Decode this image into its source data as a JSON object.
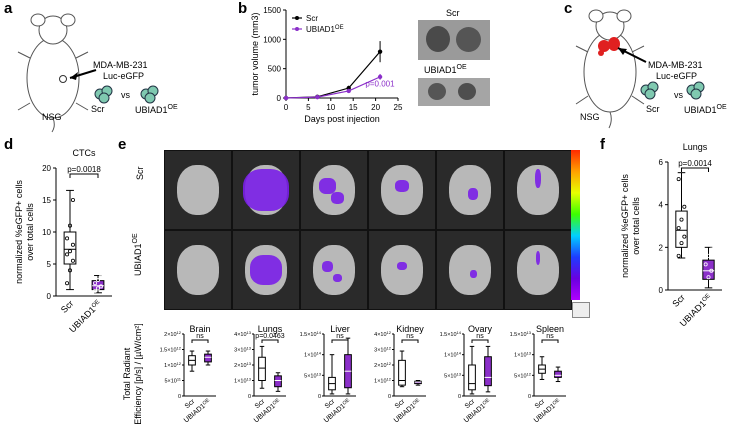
{
  "panels": {
    "a": {
      "letter": "a",
      "strain": "NSG",
      "cell_line": "MDA-MB-231",
      "reporter": "Luc-eGFP",
      "vs": "vs",
      "g1": "Scr",
      "g2": "UBIAD1",
      "sup": "OE"
    },
    "b": {
      "letter": "b",
      "photo_scr": "Scr",
      "photo_oe": "UBIAD1",
      "photo_oe_sup": "OE"
    },
    "c": {
      "letter": "c",
      "strain": "NSG",
      "cell_line": "MDA-MB-231",
      "reporter": "Luc-eGFP",
      "vs": "vs",
      "g1": "Scr",
      "g2": "UBIAD1",
      "sup": "OE"
    },
    "d": {
      "letter": "d"
    },
    "e": {
      "letter": "e",
      "row1": "Scr",
      "row2": "UBIAD1",
      "row2_sup": "OE",
      "colorbar_colors": [
        "#ff2a00",
        "#ffa000",
        "#e8ff00",
        "#3cff00",
        "#00d0ff",
        "#1e3cff",
        "#6a00e0",
        "#b000ff"
      ]
    },
    "f": {
      "letter": "f"
    }
  },
  "chart_data": [
    {
      "id": "tumor-volume",
      "type": "line",
      "ylabel": "tumor volume (mm",
      "ylabel_sup": "3",
      "ylabel_close": ")",
      "xlabel": "Days post injection",
      "x": [
        0,
        7,
        14,
        21
      ],
      "xticks": [
        "0",
        "5",
        "10",
        "15",
        "20",
        "25"
      ],
      "yticks": [
        "0",
        "500",
        "1000",
        "1500"
      ],
      "ylim": [
        0,
        1500
      ],
      "xlim": [
        0,
        25
      ],
      "series": [
        {
          "name": "Scr",
          "color": "#000000",
          "values": [
            0,
            20,
            170,
            790
          ],
          "err": [
            0,
            10,
            40,
            180
          ]
        },
        {
          "name": "UBIAD1",
          "name_sup": "OE",
          "color": "#8b2fc9",
          "values": [
            0,
            15,
            120,
            360
          ],
          "err": [
            0,
            8,
            30,
            50
          ]
        }
      ],
      "annotation": "p=0.001"
    },
    {
      "id": "ctcs",
      "type": "box",
      "title": "CTCs",
      "ylabel": "normalized %eGFP+ cells over total cells",
      "yticks": [
        "0",
        "5",
        "10",
        "15",
        "20"
      ],
      "ylim": [
        0,
        20
      ],
      "categories": [
        "Scr",
        "UBIAD1"
      ],
      "cat_sup": [
        "",
        "OE"
      ],
      "boxes": [
        {
          "min": 1.0,
          "q1": 5.0,
          "median": 7.3,
          "q3": 10.0,
          "max": 16.5,
          "fill": "#ffffff",
          "points": [
            2,
            4,
            5.5,
            6.5,
            7,
            8,
            9,
            11,
            15
          ]
        },
        {
          "min": 0.5,
          "q1": 1.0,
          "median": 1.6,
          "q3": 2.4,
          "max": 3.2,
          "fill": "#8b2fc9",
          "points": [
            0.8,
            1.2,
            1.5,
            2,
            2.5,
            3
          ]
        }
      ],
      "pvalue": "p=0.0018"
    },
    {
      "id": "lungs",
      "type": "box",
      "title": "Lungs",
      "ylabel": "normalized %eGFP+ cells over total cells",
      "yticks": [
        "0",
        "2",
        "4",
        "6"
      ],
      "ylim": [
        0,
        6
      ],
      "categories": [
        "Scr",
        "UBIAD1"
      ],
      "cat_sup": [
        "",
        "OE"
      ],
      "boxes": [
        {
          "min": 1.5,
          "q1": 2.0,
          "median": 2.8,
          "q3": 3.7,
          "max": 5.5,
          "fill": "#ffffff",
          "points": [
            1.6,
            2.2,
            2.5,
            2.9,
            3.3,
            3.9,
            5.2
          ]
        },
        {
          "min": 0.1,
          "q1": 0.5,
          "median": 0.9,
          "q3": 1.4,
          "max": 2.0,
          "fill": "#8b2fc9",
          "points": [
            0.3,
            0.6,
            0.9,
            1.2,
            1.6,
            1.9
          ]
        }
      ],
      "pvalue": "p=0.0014"
    },
    {
      "id": "radiant",
      "type": "box",
      "ylabel": "Total Radiant Efficiency [p/s] / [µW/cm²]",
      "categories": [
        "Scr",
        "UBIAD1"
      ],
      "cat_sup": [
        "",
        "OE"
      ],
      "subplots": [
        {
          "title": "Brain",
          "yticks": [
            "0",
            "5×10",
            "1×10",
            "1.5×10",
            "2×10"
          ],
          "yexp": [
            "",
            "11",
            "12",
            "12",
            "12"
          ],
          "ylim": [
            0,
            2
          ],
          "pvalue": "ns",
          "boxes": [
            {
              "min": 0.8,
              "q1": 1.0,
              "median": 1.15,
              "q3": 1.3,
              "max": 1.45,
              "fill": "#ffffff"
            },
            {
              "min": 1.0,
              "q1": 1.1,
              "median": 1.25,
              "q3": 1.35,
              "max": 1.45,
              "fill": "#8b2fc9"
            }
          ]
        },
        {
          "title": "Lungs",
          "yticks": [
            "0",
            "1×10",
            "2×10",
            "3×10",
            "4×10"
          ],
          "yexp": [
            "",
            "13",
            "13",
            "13",
            "13"
          ],
          "ylim": [
            0,
            4
          ],
          "pvalue": "p=0.0463",
          "boxes": [
            {
              "min": 0.5,
              "q1": 1.0,
              "median": 1.8,
              "q3": 2.5,
              "max": 3.2,
              "fill": "#ffffff"
            },
            {
              "min": 0.3,
              "q1": 0.6,
              "median": 1.0,
              "q3": 1.3,
              "max": 1.5,
              "fill": "#8b2fc9"
            }
          ]
        },
        {
          "title": "Liver",
          "yticks": [
            "0",
            "5×10",
            "1×10",
            "1.5×10"
          ],
          "yexp": [
            "",
            "13",
            "14",
            "14"
          ],
          "ylim": [
            0,
            1.5
          ],
          "pvalue": "ns",
          "boxes": [
            {
              "min": 0.05,
              "q1": 0.15,
              "median": 0.3,
              "q3": 0.45,
              "max": 1.0,
              "fill": "#ffffff"
            },
            {
              "min": 0.05,
              "q1": 0.2,
              "median": 0.6,
              "q3": 1.0,
              "max": 1.4,
              "fill": "#8b2fc9"
            }
          ]
        },
        {
          "title": "Kidney",
          "yticks": [
            "0",
            "1×10",
            "2×10",
            "3×10",
            "4×10"
          ],
          "yexp": [
            "",
            "12",
            "12",
            "12",
            "12"
          ],
          "ylim": [
            0,
            4
          ],
          "pvalue": "ns",
          "boxes": [
            {
              "min": 0.6,
              "q1": 0.7,
              "median": 1.0,
              "q3": 2.3,
              "max": 2.9,
              "fill": "#ffffff"
            },
            {
              "min": 0.7,
              "q1": 0.8,
              "median": 0.9,
              "q3": 0.95,
              "max": 1.0,
              "fill": "#8b2fc9"
            }
          ]
        },
        {
          "title": "Ovary",
          "yticks": [
            "0",
            "5×10",
            "1×10",
            "1.5×10"
          ],
          "yexp": [
            "",
            "13",
            "14",
            "14"
          ],
          "ylim": [
            0,
            1.5
          ],
          "pvalue": "ns",
          "boxes": [
            {
              "min": 0.05,
              "q1": 0.15,
              "median": 0.3,
              "q3": 0.75,
              "max": 1.2,
              "fill": "#ffffff"
            },
            {
              "min": 0.1,
              "q1": 0.25,
              "median": 0.45,
              "q3": 0.95,
              "max": 1.2,
              "fill": "#8b2fc9"
            }
          ]
        },
        {
          "title": "Spleen",
          "yticks": [
            "0",
            "5×10",
            "1×10",
            "1.5×10"
          ],
          "yexp": [
            "",
            "12",
            "13",
            "13"
          ],
          "ylim": [
            0,
            1.5
          ],
          "pvalue": "ns",
          "boxes": [
            {
              "min": 0.4,
              "q1": 0.55,
              "median": 0.65,
              "q3": 0.75,
              "max": 0.95,
              "fill": "#ffffff"
            },
            {
              "min": 0.35,
              "q1": 0.45,
              "median": 0.5,
              "q3": 0.6,
              "max": 0.7,
              "fill": "#8b2fc9"
            }
          ]
        }
      ]
    }
  ]
}
